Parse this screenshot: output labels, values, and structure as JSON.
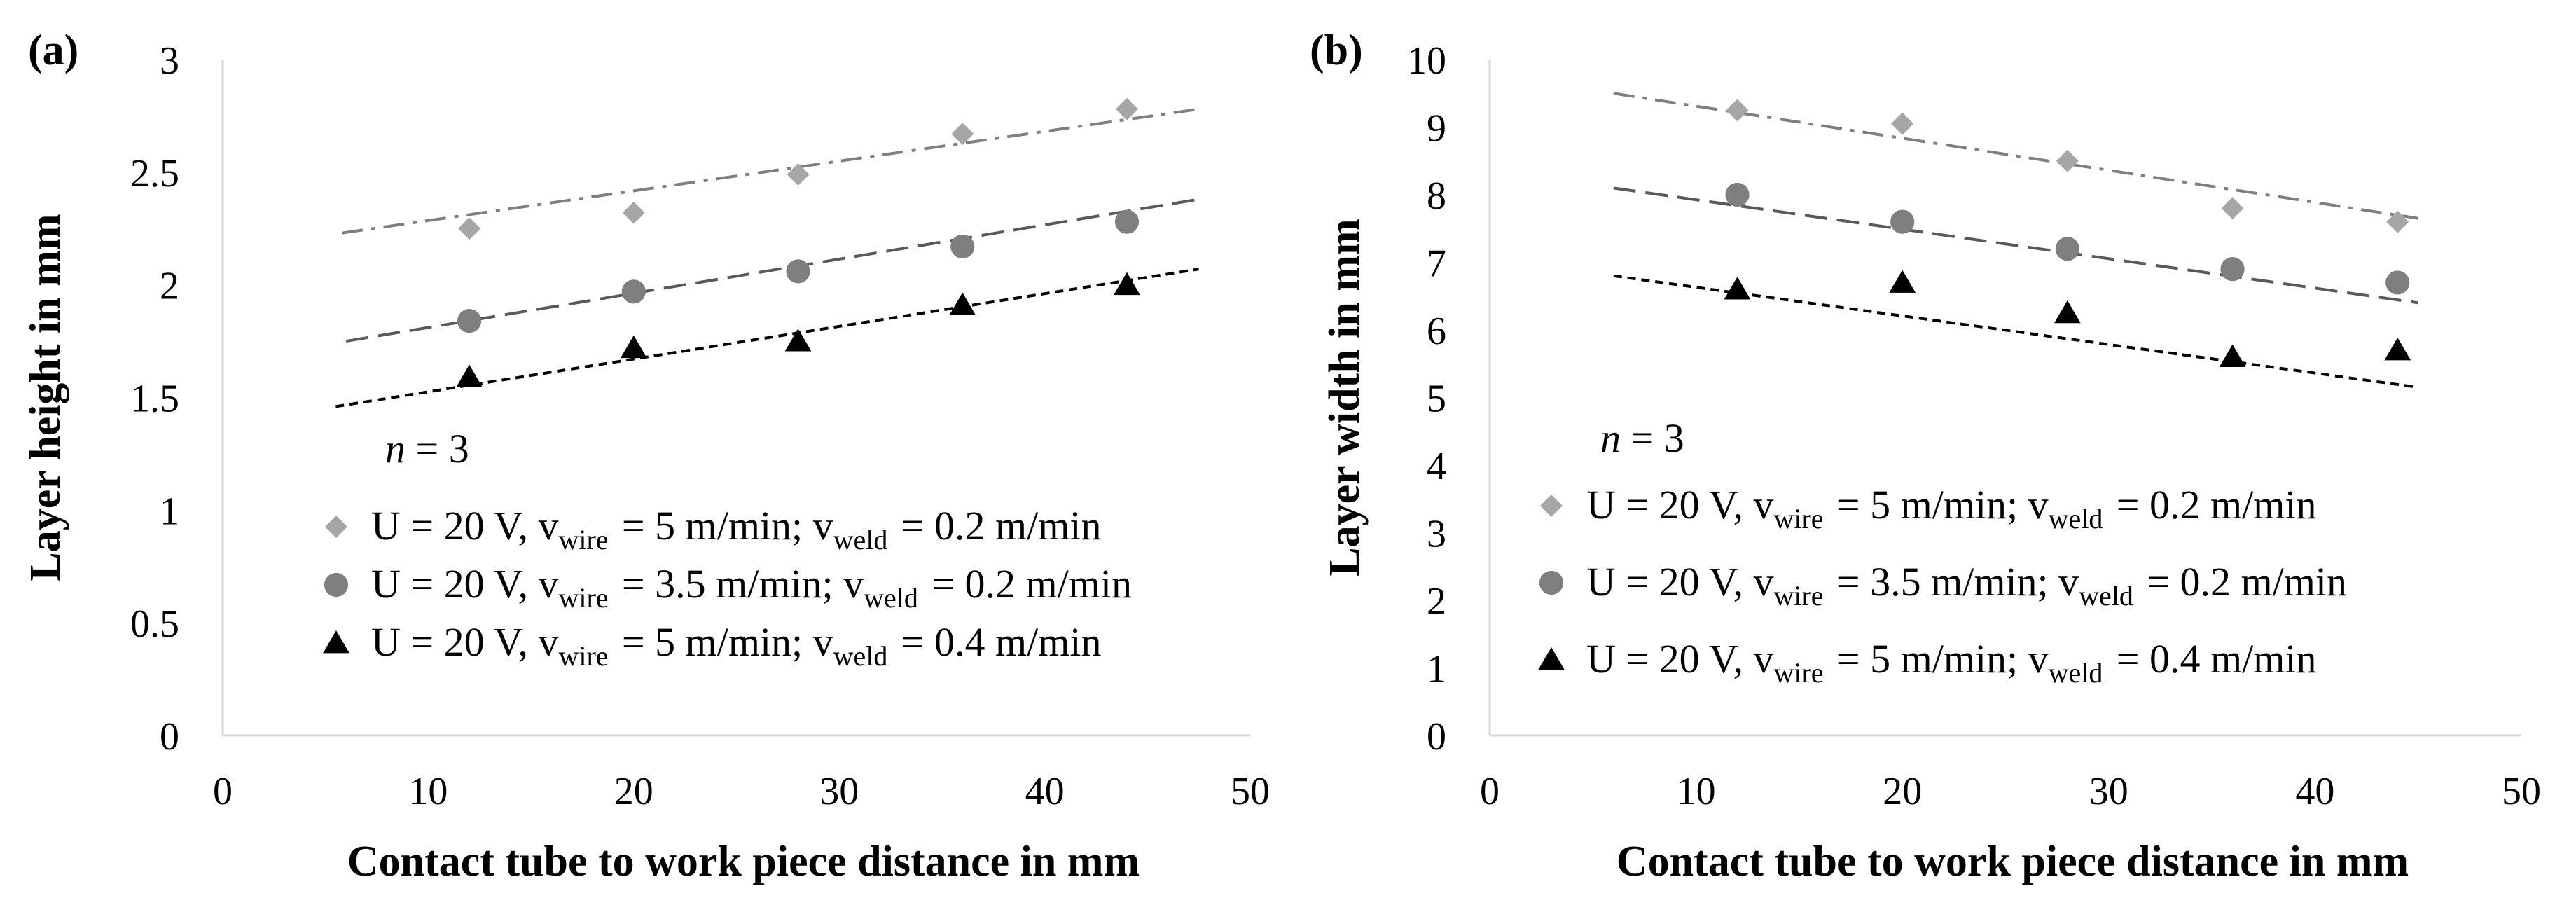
{
  "chart_data": [
    {
      "type": "scatter",
      "panel_label": "(a)",
      "xlabel": "Contact tube to work piece distance in mm",
      "ylabel": "Layer height in mm",
      "xlim": [
        0,
        50
      ],
      "ylim": [
        0,
        3
      ],
      "x_ticks": [
        "0",
        "10",
        "20",
        "30",
        "40",
        "50"
      ],
      "y_ticks": [
        "0",
        "0.5",
        "1",
        "1.5",
        "2",
        "2.5",
        "3"
      ],
      "grid": false,
      "legend_note": "n = 3",
      "series": [
        {
          "name": "U = 20 V, v_wire = 5 m/min; v_weld = 0.2 m/min",
          "marker": "diamond",
          "color": "#a6a6a6",
          "x": [
            12,
            20,
            28,
            36,
            44
          ],
          "y": [
            2.25,
            2.32,
            2.49,
            2.67,
            2.78
          ],
          "trend": {
            "x": [
              5.8,
              47.5
            ],
            "y": [
              2.23,
              2.78
            ],
            "style": "dash-dot"
          }
        },
        {
          "name": "U = 20 V, v_wire = 3.5 m/min; v_weld = 0.2 m/min",
          "marker": "circle",
          "color": "#7f7f7f",
          "x": [
            12,
            20,
            28,
            36,
            44
          ],
          "y": [
            1.84,
            1.97,
            2.06,
            2.17,
            2.28
          ],
          "trend": {
            "x": [
              6,
              47.5
            ],
            "y": [
              1.75,
              2.38
            ],
            "style": "dash"
          }
        },
        {
          "name": "U = 20 V, v_wire = 5 m/min; v_weld = 0.4 m/min",
          "marker": "triangle",
          "color": "#000000",
          "x": [
            12,
            20,
            28,
            36,
            44
          ],
          "y": [
            1.59,
            1.72,
            1.75,
            1.91,
            2.0
          ],
          "trend": {
            "x": [
              5.5,
              47.5
            ],
            "y": [
              1.46,
              2.07
            ],
            "style": "dot"
          }
        }
      ]
    },
    {
      "type": "scatter",
      "panel_label": "(b)",
      "xlabel": "Contact tube to work piece distance in mm",
      "ylabel": "Layer width in mm",
      "xlim": [
        0,
        50
      ],
      "ylim": [
        0,
        10
      ],
      "x_ticks": [
        "0",
        "10",
        "20",
        "30",
        "40",
        "50"
      ],
      "y_ticks": [
        "0",
        "1",
        "2",
        "3",
        "4",
        "5",
        "6",
        "7",
        "8",
        "9",
        "10"
      ],
      "grid": false,
      "legend_note": "n = 3",
      "series": [
        {
          "name": "U = 20 V, v_wire = 5 m/min; v_weld = 0.2 m/min",
          "marker": "diamond",
          "color": "#a6a6a6",
          "x": [
            12,
            20,
            28,
            36,
            44
          ],
          "y": [
            9.25,
            9.05,
            8.5,
            7.8,
            7.6
          ],
          "trend": {
            "x": [
              6,
              45
            ],
            "y": [
              9.5,
              7.65
            ],
            "style": "dash-dot"
          }
        },
        {
          "name": "U = 20 V, v_wire = 3.5 m/min; v_weld = 0.2 m/min",
          "marker": "circle",
          "color": "#7f7f7f",
          "x": [
            12,
            20,
            28,
            36,
            44
          ],
          "y": [
            8.0,
            7.6,
            7.2,
            6.9,
            6.7
          ],
          "trend": {
            "x": [
              6,
              45
            ],
            "y": [
              8.1,
              6.4
            ],
            "style": "dash"
          }
        },
        {
          "name": "U = 20 V, v_wire = 5 m/min; v_weld = 0.4 m/min",
          "marker": "triangle",
          "color": "#000000",
          "x": [
            12,
            20,
            28,
            36,
            44
          ],
          "y": [
            6.6,
            6.7,
            6.25,
            5.6,
            5.7
          ],
          "trend": {
            "x": [
              6,
              45
            ],
            "y": [
              6.8,
              5.15
            ],
            "style": "dot"
          }
        }
      ]
    }
  ]
}
